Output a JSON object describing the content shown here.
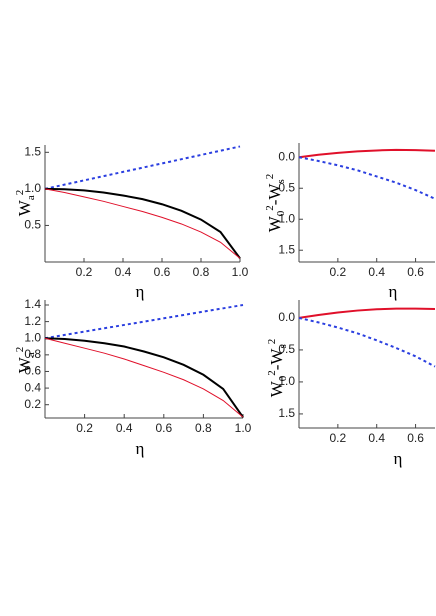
{
  "chart_data": [
    {
      "type": "line",
      "x": [
        0,
        0.1,
        0.2,
        0.3,
        0.4,
        0.5,
        0.6,
        0.7,
        0.8,
        0.9,
        1.0
      ],
      "xlim": [
        0,
        1.0
      ],
      "xticks": [
        0.2,
        0.4,
        0.6,
        0.8,
        {
          "value": 1.0,
          "label": "1.0"
        }
      ],
      "ylim": [
        0,
        1.6
      ],
      "yticks": [
        0.5,
        {
          "value": 1.0,
          "label": "1.0"
        },
        1.5
      ],
      "xlabel": "η",
      "ylabel": [
        [
          "W",
          "base"
        ],
        [
          "a",
          "sub"
        ],
        [
          "2",
          "sup"
        ]
      ],
      "series": [
        {
          "color": "#2b3fe0",
          "style": "dashed",
          "line_width": 2,
          "values": [
            1,
            1.058,
            1.116,
            1.174,
            1.232,
            1.29,
            1.348,
            1.406,
            1.464,
            1.522,
            1.58
          ]
        },
        {
          "color": "#000000",
          "style": "solid",
          "line_width": 2,
          "values": [
            1,
            0.995,
            0.98,
            0.95,
            0.91,
            0.86,
            0.79,
            0.7,
            0.58,
            0.41,
            0.05
          ]
        },
        {
          "color": "#e0102a",
          "style": "solid",
          "line_width": 1,
          "values": [
            1,
            0.95,
            0.89,
            0.83,
            0.76,
            0.69,
            0.61,
            0.52,
            0.41,
            0.27,
            0.05
          ]
        }
      ]
    },
    {
      "type": "line",
      "x": [
        0,
        0.1,
        0.2,
        0.3,
        0.4,
        0.5,
        0.6,
        0.7
      ],
      "xlim": [
        0,
        0.7
      ],
      "xticks": [
        0.2,
        0.4,
        0.6
      ],
      "ylim": [
        -1.69,
        0.23
      ],
      "yticks": [
        {
          "value": 0,
          "label": "0.0"
        },
        {
          "value": -0.5,
          "label": "0.5"
        },
        {
          "value": -1.0,
          "label": "1.0"
        },
        {
          "value": -1.5,
          "label": "1.5"
        }
      ],
      "xlabel": "η",
      "ylabel": [
        [
          "W",
          "base"
        ],
        [
          "0",
          "sub"
        ],
        [
          "2",
          "sup"
        ],
        [
          "-W",
          "base"
        ],
        [
          "s",
          "sub"
        ],
        [
          "2",
          "sup"
        ]
      ],
      "series": [
        {
          "color": "#e0102a",
          "style": "solid",
          "line_width": 2,
          "values": [
            0,
            0.04,
            0.07,
            0.095,
            0.11,
            0.12,
            0.115,
            0.105
          ]
        },
        {
          "color": "#2b3fe0",
          "style": "dashed",
          "line_width": 2,
          "values": [
            0,
            -0.06,
            -0.13,
            -0.21,
            -0.31,
            -0.41,
            -0.53,
            -0.67
          ]
        }
      ]
    },
    {
      "type": "line",
      "x": [
        0,
        0.1,
        0.2,
        0.3,
        0.4,
        0.5,
        0.6,
        0.7,
        0.8,
        0.9,
        1.0
      ],
      "xlim": [
        0,
        1.0
      ],
      "xticks": [
        0.2,
        0.4,
        0.6,
        0.8,
        {
          "value": 1.0,
          "label": "1.0"
        }
      ],
      "ylim": [
        0.04,
        1.46
      ],
      "yticks": [
        0.2,
        0.4,
        0.6,
        0.8,
        {
          "value": 1.0,
          "label": "1.0"
        },
        1.2,
        1.4
      ],
      "xlabel": "η",
      "ylabel": [
        [
          "W",
          "base"
        ],
        [
          "a",
          "sub"
        ],
        [
          "2",
          "sup"
        ]
      ],
      "series": [
        {
          "color": "#2b3fe0",
          "style": "dashed",
          "line_width": 2,
          "values": [
            1,
            1.04,
            1.08,
            1.12,
            1.16,
            1.2,
            1.24,
            1.28,
            1.32,
            1.36,
            1.4
          ]
        },
        {
          "color": "#000000",
          "style": "solid",
          "line_width": 2,
          "values": [
            1,
            0.99,
            0.97,
            0.94,
            0.9,
            0.84,
            0.77,
            0.68,
            0.56,
            0.39,
            0.05
          ]
        },
        {
          "color": "#e0102a",
          "style": "solid",
          "line_width": 1,
          "values": [
            1,
            0.94,
            0.88,
            0.82,
            0.75,
            0.67,
            0.59,
            0.5,
            0.39,
            0.25,
            0.05
          ]
        }
      ]
    },
    {
      "type": "line",
      "x": [
        0,
        0.1,
        0.2,
        0.3,
        0.4,
        0.5,
        0.6,
        0.7
      ],
      "xlim": [
        0,
        0.7
      ],
      "xticks": [
        0.2,
        0.4,
        0.6
      ],
      "ylim": [
        -1.72,
        0.28
      ],
      "yticks": [
        {
          "value": 0,
          "label": "0.0"
        },
        {
          "value": -0.5,
          "label": "0.5"
        },
        {
          "value": -1.0,
          "label": "1.0"
        },
        {
          "value": -1.5,
          "label": "1.5"
        }
      ],
      "xlabel": "η",
      "ylabel": [
        [
          "W",
          "base"
        ],
        [
          "0",
          "sub"
        ],
        [
          "2",
          "sup"
        ],
        [
          "-W",
          "base"
        ],
        [
          "s",
          "sub"
        ],
        [
          "2",
          "sup"
        ]
      ],
      "series": [
        {
          "color": "#e0102a",
          "style": "solid",
          "line_width": 2,
          "values": [
            0,
            0.045,
            0.085,
            0.115,
            0.135,
            0.145,
            0.145,
            0.14
          ]
        },
        {
          "color": "#2b3fe0",
          "style": "dashed",
          "line_width": 2,
          "values": [
            0,
            -0.07,
            -0.15,
            -0.24,
            -0.35,
            -0.47,
            -0.6,
            -0.76
          ]
        }
      ]
    }
  ]
}
